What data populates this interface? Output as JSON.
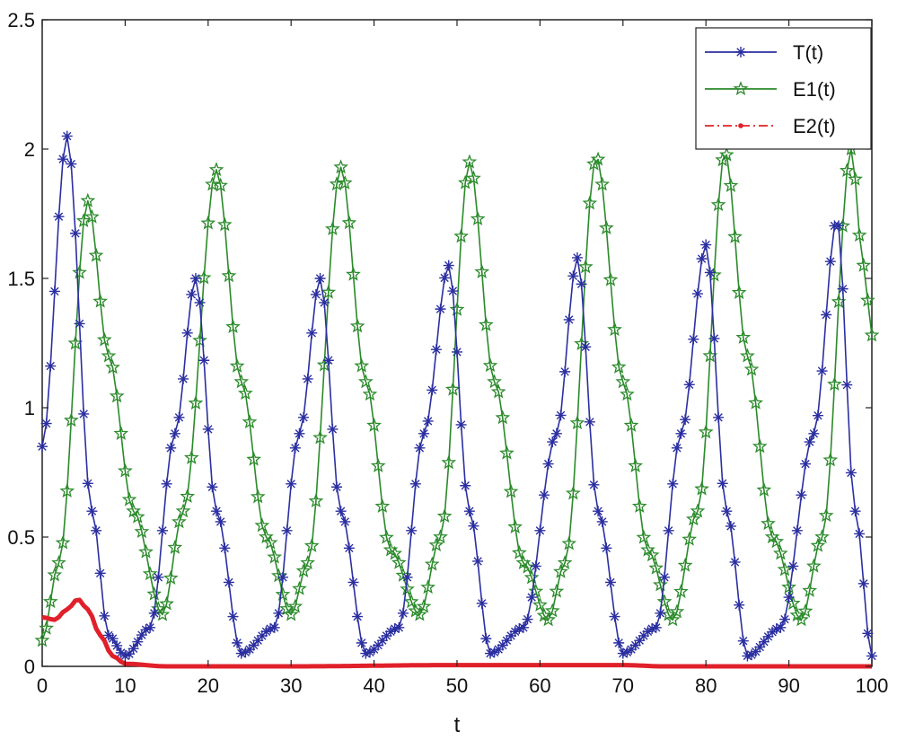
{
  "chart_data": {
    "type": "line",
    "title": "",
    "xlabel": "t",
    "ylabel": "",
    "xlim": [
      0,
      100
    ],
    "ylim": [
      0,
      2.5
    ],
    "xticks": [
      "0",
      "10",
      "20",
      "30",
      "40",
      "50",
      "60",
      "70",
      "80",
      "90",
      "100"
    ],
    "yticks": [
      "0",
      "0.5",
      "1",
      "1.5",
      "2",
      "2.5"
    ],
    "grid": false,
    "legend_position": "top-right",
    "series": [
      {
        "name": "T(t)",
        "color": "#2b2fa0",
        "marker": "asterisk",
        "line_style": "solid",
        "key_points": [
          [
            0,
            0.85
          ],
          [
            3,
            2.05
          ],
          [
            6,
            0.6
          ],
          [
            8,
            0.12
          ],
          [
            10,
            0.04
          ],
          [
            13,
            0.15
          ],
          [
            16,
            0.9
          ],
          [
            18.5,
            1.5
          ],
          [
            21,
            0.6
          ],
          [
            24,
            0.05
          ],
          [
            28,
            0.15
          ],
          [
            31,
            0.9
          ],
          [
            33.5,
            1.5
          ],
          [
            36,
            0.6
          ],
          [
            39,
            0.05
          ],
          [
            43,
            0.15
          ],
          [
            46,
            0.9
          ],
          [
            49,
            1.55
          ],
          [
            51.5,
            0.6
          ],
          [
            54,
            0.05
          ],
          [
            58,
            0.15
          ],
          [
            62,
            0.9
          ],
          [
            64.5,
            1.58
          ],
          [
            67,
            0.6
          ],
          [
            70,
            0.05
          ],
          [
            74,
            0.15
          ],
          [
            77,
            0.9
          ],
          [
            80,
            1.63
          ],
          [
            82.5,
            0.6
          ],
          [
            85,
            0.04
          ],
          [
            89,
            0.15
          ],
          [
            93,
            0.9
          ],
          [
            95.8,
            1.73
          ],
          [
            98,
            0.6
          ],
          [
            100,
            0.04
          ]
        ]
      },
      {
        "name": "E1(t)",
        "color": "#2a8a2a",
        "marker": "pentagram",
        "line_style": "solid",
        "key_points": [
          [
            0,
            0.1
          ],
          [
            2,
            0.4
          ],
          [
            5.5,
            1.8
          ],
          [
            8,
            1.2
          ],
          [
            11,
            0.6
          ],
          [
            14.5,
            0.2
          ],
          [
            17,
            0.6
          ],
          [
            21,
            1.92
          ],
          [
            24,
            1.1
          ],
          [
            27,
            0.5
          ],
          [
            30,
            0.2
          ],
          [
            32,
            0.4
          ],
          [
            36,
            1.93
          ],
          [
            39,
            1.1
          ],
          [
            42,
            0.45
          ],
          [
            45.5,
            0.2
          ],
          [
            48,
            0.5
          ],
          [
            51.5,
            1.95
          ],
          [
            54.5,
            1.1
          ],
          [
            58,
            0.4
          ],
          [
            61,
            0.18
          ],
          [
            63,
            0.4
          ],
          [
            66.8,
            1.97
          ],
          [
            70,
            1.1
          ],
          [
            73,
            0.45
          ],
          [
            76,
            0.18
          ],
          [
            79,
            0.6
          ],
          [
            82.3,
            1.99
          ],
          [
            85,
            1.2
          ],
          [
            88,
            0.5
          ],
          [
            91.5,
            0.18
          ],
          [
            94,
            0.5
          ],
          [
            97.5,
            2.0
          ],
          [
            99,
            1.55
          ],
          [
            100,
            1.28
          ]
        ]
      },
      {
        "name": "E2(t)",
        "color": "#e0202a",
        "marker": "dot",
        "line_style": "dash-dot",
        "key_points": [
          [
            0,
            0.19
          ],
          [
            1.5,
            0.18
          ],
          [
            3,
            0.22
          ],
          [
            4.3,
            0.26
          ],
          [
            5.5,
            0.22
          ],
          [
            7,
            0.12
          ],
          [
            8.5,
            0.04
          ],
          [
            10,
            0.01
          ],
          [
            15,
            0.0
          ],
          [
            30,
            0.0
          ],
          [
            50,
            0.005
          ],
          [
            70,
            0.005
          ],
          [
            75,
            0.0
          ],
          [
            100,
            0.0
          ]
        ]
      }
    ]
  }
}
